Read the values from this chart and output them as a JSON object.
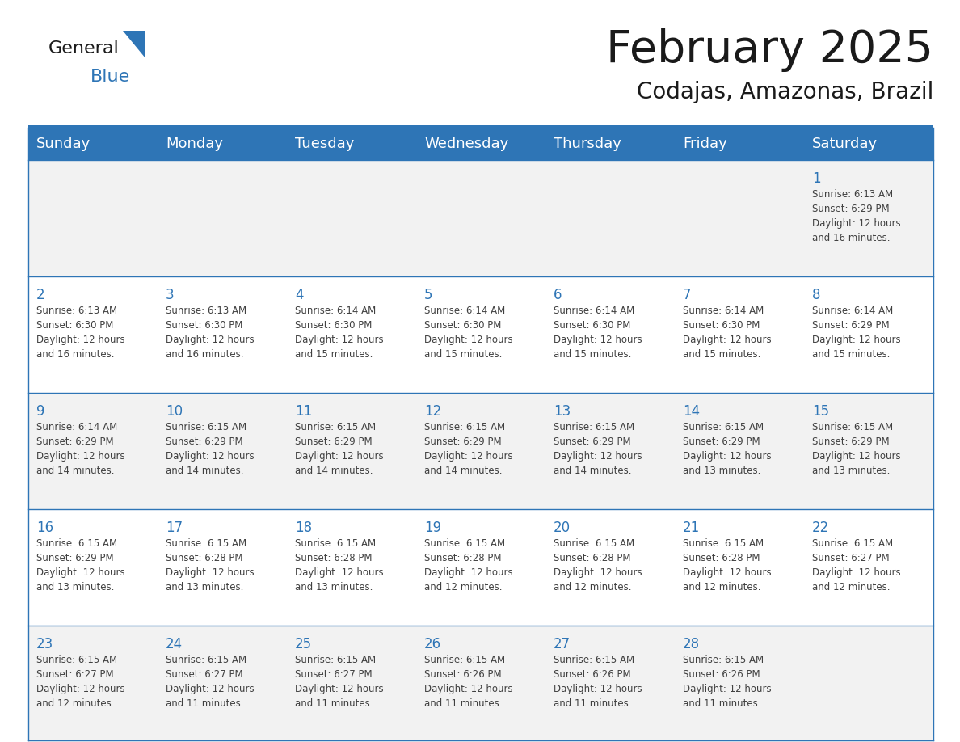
{
  "title": "February 2025",
  "subtitle": "Codajas, Amazonas, Brazil",
  "header_bg": "#2E75B6",
  "header_text_color": "#FFFFFF",
  "cell_bg_odd": "#F2F2F2",
  "cell_bg_even": "#FFFFFF",
  "day_number_color": "#2E75B6",
  "cell_text_color": "#404040",
  "border_color": "#2E75B6",
  "title_color": "#1a1a1a",
  "subtitle_color": "#1a1a1a",
  "logo_text_color": "#1a1a1a",
  "logo_blue_color": "#2E75B6",
  "days_of_week": [
    "Sunday",
    "Monday",
    "Tuesday",
    "Wednesday",
    "Thursday",
    "Friday",
    "Saturday"
  ],
  "weeks": [
    [
      {
        "day": null,
        "info": null
      },
      {
        "day": null,
        "info": null
      },
      {
        "day": null,
        "info": null
      },
      {
        "day": null,
        "info": null
      },
      {
        "day": null,
        "info": null
      },
      {
        "day": null,
        "info": null
      },
      {
        "day": "1",
        "info": "Sunrise: 6:13 AM\nSunset: 6:29 PM\nDaylight: 12 hours\nand 16 minutes."
      }
    ],
    [
      {
        "day": "2",
        "info": "Sunrise: 6:13 AM\nSunset: 6:30 PM\nDaylight: 12 hours\nand 16 minutes."
      },
      {
        "day": "3",
        "info": "Sunrise: 6:13 AM\nSunset: 6:30 PM\nDaylight: 12 hours\nand 16 minutes."
      },
      {
        "day": "4",
        "info": "Sunrise: 6:14 AM\nSunset: 6:30 PM\nDaylight: 12 hours\nand 15 minutes."
      },
      {
        "day": "5",
        "info": "Sunrise: 6:14 AM\nSunset: 6:30 PM\nDaylight: 12 hours\nand 15 minutes."
      },
      {
        "day": "6",
        "info": "Sunrise: 6:14 AM\nSunset: 6:30 PM\nDaylight: 12 hours\nand 15 minutes."
      },
      {
        "day": "7",
        "info": "Sunrise: 6:14 AM\nSunset: 6:30 PM\nDaylight: 12 hours\nand 15 minutes."
      },
      {
        "day": "8",
        "info": "Sunrise: 6:14 AM\nSunset: 6:29 PM\nDaylight: 12 hours\nand 15 minutes."
      }
    ],
    [
      {
        "day": "9",
        "info": "Sunrise: 6:14 AM\nSunset: 6:29 PM\nDaylight: 12 hours\nand 14 minutes."
      },
      {
        "day": "10",
        "info": "Sunrise: 6:15 AM\nSunset: 6:29 PM\nDaylight: 12 hours\nand 14 minutes."
      },
      {
        "day": "11",
        "info": "Sunrise: 6:15 AM\nSunset: 6:29 PM\nDaylight: 12 hours\nand 14 minutes."
      },
      {
        "day": "12",
        "info": "Sunrise: 6:15 AM\nSunset: 6:29 PM\nDaylight: 12 hours\nand 14 minutes."
      },
      {
        "day": "13",
        "info": "Sunrise: 6:15 AM\nSunset: 6:29 PM\nDaylight: 12 hours\nand 14 minutes."
      },
      {
        "day": "14",
        "info": "Sunrise: 6:15 AM\nSunset: 6:29 PM\nDaylight: 12 hours\nand 13 minutes."
      },
      {
        "day": "15",
        "info": "Sunrise: 6:15 AM\nSunset: 6:29 PM\nDaylight: 12 hours\nand 13 minutes."
      }
    ],
    [
      {
        "day": "16",
        "info": "Sunrise: 6:15 AM\nSunset: 6:29 PM\nDaylight: 12 hours\nand 13 minutes."
      },
      {
        "day": "17",
        "info": "Sunrise: 6:15 AM\nSunset: 6:28 PM\nDaylight: 12 hours\nand 13 minutes."
      },
      {
        "day": "18",
        "info": "Sunrise: 6:15 AM\nSunset: 6:28 PM\nDaylight: 12 hours\nand 13 minutes."
      },
      {
        "day": "19",
        "info": "Sunrise: 6:15 AM\nSunset: 6:28 PM\nDaylight: 12 hours\nand 12 minutes."
      },
      {
        "day": "20",
        "info": "Sunrise: 6:15 AM\nSunset: 6:28 PM\nDaylight: 12 hours\nand 12 minutes."
      },
      {
        "day": "21",
        "info": "Sunrise: 6:15 AM\nSunset: 6:28 PM\nDaylight: 12 hours\nand 12 minutes."
      },
      {
        "day": "22",
        "info": "Sunrise: 6:15 AM\nSunset: 6:27 PM\nDaylight: 12 hours\nand 12 minutes."
      }
    ],
    [
      {
        "day": "23",
        "info": "Sunrise: 6:15 AM\nSunset: 6:27 PM\nDaylight: 12 hours\nand 12 minutes."
      },
      {
        "day": "24",
        "info": "Sunrise: 6:15 AM\nSunset: 6:27 PM\nDaylight: 12 hours\nand 11 minutes."
      },
      {
        "day": "25",
        "info": "Sunrise: 6:15 AM\nSunset: 6:27 PM\nDaylight: 12 hours\nand 11 minutes."
      },
      {
        "day": "26",
        "info": "Sunrise: 6:15 AM\nSunset: 6:26 PM\nDaylight: 12 hours\nand 11 minutes."
      },
      {
        "day": "27",
        "info": "Sunrise: 6:15 AM\nSunset: 6:26 PM\nDaylight: 12 hours\nand 11 minutes."
      },
      {
        "day": "28",
        "info": "Sunrise: 6:15 AM\nSunset: 6:26 PM\nDaylight: 12 hours\nand 11 minutes."
      },
      {
        "day": null,
        "info": null
      }
    ]
  ]
}
